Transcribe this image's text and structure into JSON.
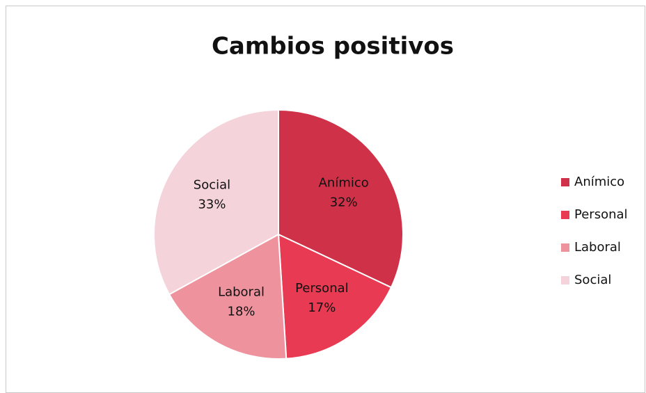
{
  "chart_data": {
    "type": "pie",
    "title": "Cambios positivos",
    "categories": [
      "Anímico",
      "Personal",
      "Laboral",
      "Social"
    ],
    "values": [
      32,
      17,
      18,
      33
    ],
    "value_labels": [
      "32%",
      "17%",
      "18%",
      "33%"
    ],
    "colors": [
      "#cf3148",
      "#e83a52",
      "#ee939e",
      "#f4d3da"
    ],
    "legend": "right"
  }
}
